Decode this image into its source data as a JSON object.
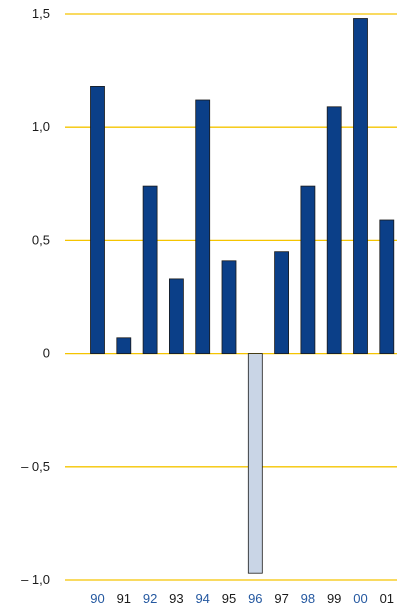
{
  "chart_data": {
    "type": "bar",
    "categories": [
      "90",
      "91",
      "92",
      "93",
      "94",
      "95",
      "96",
      "97",
      "98",
      "99",
      "00",
      "01"
    ],
    "values": [
      1.18,
      0.07,
      0.74,
      0.33,
      1.12,
      0.41,
      -0.97,
      0.45,
      0.74,
      1.09,
      1.48,
      0.59
    ],
    "ylim": [
      -1.0,
      1.5
    ],
    "yticks": [
      1.5,
      1.0,
      0.5,
      0,
      -0.5,
      -1.0
    ],
    "ytick_labels": [
      "1,5",
      "1,0",
      "0,5",
      "0",
      "– 0,5",
      "– 1,0"
    ],
    "title": "",
    "xlabel": "",
    "ylabel": "",
    "grid": true,
    "colors": {
      "bar": "#0b3f88",
      "bar_negative": "#c9d5e6",
      "bar_stroke": "#1a1a1a",
      "grid": "#f5c400",
      "label_highlight": "#2458a0",
      "label_default": "#1a1a1a"
    },
    "highlighted_labels": [
      "90",
      "92",
      "94",
      "96",
      "98",
      "00"
    ]
  }
}
